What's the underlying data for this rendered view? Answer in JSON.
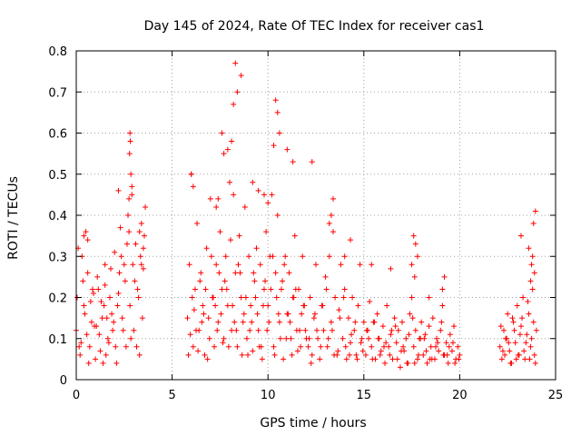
{
  "chart_data": {
    "type": "scatter",
    "title": "Day 145 of 2024, Rate Of TEC Index for receiver cas1",
    "xlabel": "GPS time / hours",
    "ylabel": "ROTI / TECUs",
    "xlim": [
      0,
      25
    ],
    "ylim": [
      0,
      0.8
    ],
    "xticks": [
      0,
      5,
      10,
      15,
      20,
      25
    ],
    "yticks": [
      0,
      0.1,
      0.2,
      0.3,
      0.4,
      0.5,
      0.6,
      0.7,
      0.8
    ],
    "xtick_labels": [
      "0",
      "5",
      "10",
      "15",
      "20",
      "25"
    ],
    "ytick_labels": [
      "0",
      "0.1",
      "0.2",
      "0.3",
      "0.4",
      "0.5",
      "0.6",
      "0.7",
      "0.8"
    ],
    "grid": true,
    "marker": "+",
    "series_color": "#ff0000",
    "series": [
      {
        "name": "ROTI",
        "x": [
          0.0,
          0.1,
          0.2,
          0.3,
          0.4,
          0.5,
          0.6,
          0.7,
          0.8,
          0.9,
          1.0,
          1.1,
          1.2,
          1.3,
          1.4,
          1.5,
          1.6,
          1.7,
          1.8,
          1.9,
          2.0,
          2.1,
          2.2,
          2.3,
          2.4,
          2.5,
          2.6,
          2.7,
          2.8,
          2.9,
          3.0,
          3.1,
          3.2,
          3.3,
          3.4,
          3.5,
          3.6,
          0.05,
          0.25,
          0.45,
          0.65,
          0.85,
          1.05,
          1.25,
          1.45,
          1.65,
          1.85,
          2.05,
          2.25,
          2.45,
          2.65,
          2.85,
          3.05,
          3.25,
          3.45,
          0.15,
          0.35,
          0.55,
          0.75,
          0.95,
          1.15,
          1.35,
          1.55,
          1.75,
          1.95,
          2.15,
          2.35,
          2.55,
          2.75,
          2.95,
          3.15,
          3.35,
          3.55,
          2.8,
          2.82,
          2.78,
          2.85,
          2.9,
          2.75,
          3.3,
          3.4,
          3.5,
          2.2,
          1.5,
          0.4,
          0.6,
          5.8,
          5.9,
          6.0,
          6.1,
          6.2,
          6.3,
          6.4,
          6.5,
          6.6,
          6.7,
          6.8,
          6.9,
          7.0,
          7.1,
          7.2,
          7.3,
          7.4,
          7.5,
          7.6,
          7.7,
          7.8,
          7.9,
          8.0,
          8.1,
          8.2,
          8.3,
          8.4,
          8.5,
          8.6,
          8.7,
          8.8,
          8.9,
          9.0,
          9.1,
          9.2,
          9.3,
          9.4,
          9.5,
          9.6,
          9.7,
          9.8,
          9.9,
          10.0,
          10.1,
          10.2,
          10.3,
          10.4,
          10.5,
          10.6,
          10.7,
          10.8,
          10.9,
          11.0,
          11.1,
          11.2,
          11.3,
          11.4,
          11.5,
          11.6,
          11.7,
          11.8,
          11.9,
          12.0,
          5.85,
          6.05,
          6.25,
          6.45,
          6.65,
          6.85,
          7.05,
          7.25,
          7.45,
          7.65,
          7.85,
          8.05,
          8.25,
          8.45,
          8.65,
          8.85,
          9.05,
          9.25,
          9.45,
          9.65,
          9.85,
          10.05,
          10.25,
          10.45,
          10.65,
          10.85,
          11.05,
          11.25,
          11.45,
          11.65,
          11.85,
          5.95,
          6.15,
          6.35,
          6.55,
          6.75,
          6.95,
          7.15,
          7.35,
          7.55,
          7.75,
          7.95,
          8.15,
          8.35,
          8.55,
          8.75,
          8.95,
          9.15,
          9.35,
          9.55,
          9.75,
          9.95,
          10.15,
          10.35,
          10.55,
          10.75,
          10.95,
          11.15,
          11.35,
          11.55,
          11.75,
          11.95,
          8.3,
          8.4,
          8.6,
          8.2,
          8.1,
          7.9,
          7.7,
          7.6,
          10.5,
          10.4,
          10.6,
          10.3,
          11.0,
          11.3,
          6.0,
          6.1,
          9.2,
          9.5,
          9.8,
          10.0,
          7.3,
          7.4,
          12.3,
          12.1,
          12.2,
          12.3,
          12.4,
          12.5,
          12.6,
          12.7,
          12.8,
          12.9,
          13.0,
          13.1,
          13.2,
          13.3,
          13.4,
          13.5,
          13.6,
          13.7,
          13.8,
          13.9,
          14.0,
          14.1,
          14.2,
          14.3,
          14.4,
          14.5,
          14.6,
          14.7,
          14.8,
          14.9,
          15.0,
          15.1,
          15.2,
          15.3,
          15.4,
          15.5,
          15.6,
          15.7,
          15.8,
          15.9,
          16.0,
          16.1,
          16.2,
          16.3,
          16.4,
          16.5,
          16.6,
          16.7,
          16.8,
          16.9,
          17.0,
          17.1,
          17.2,
          17.3,
          17.4,
          17.5,
          17.6,
          17.7,
          17.8,
          17.9,
          18.0,
          18.1,
          18.2,
          18.3,
          18.4,
          18.5,
          18.6,
          18.7,
          18.8,
          18.9,
          19.0,
          19.1,
          19.2,
          19.3,
          19.4,
          19.5,
          19.6,
          19.7,
          19.8,
          19.9,
          20.0,
          12.15,
          12.45,
          12.75,
          13.05,
          13.35,
          13.65,
          13.95,
          14.25,
          14.55,
          14.85,
          15.15,
          15.45,
          15.75,
          16.05,
          16.35,
          16.65,
          16.95,
          17.25,
          17.55,
          17.85,
          18.15,
          18.45,
          18.75,
          19.05,
          19.35,
          19.65,
          19.95,
          12.25,
          12.55,
          12.85,
          13.15,
          13.45,
          13.75,
          14.05,
          14.35,
          14.65,
          14.95,
          15.25,
          15.55,
          15.85,
          16.15,
          16.45,
          16.75,
          17.05,
          17.35,
          17.65,
          17.95,
          18.25,
          18.55,
          18.85,
          19.15,
          19.45,
          19.75,
          17.6,
          17.7,
          17.8,
          17.5,
          17.65,
          13.3,
          13.4,
          13.2,
          14.0,
          14.3,
          15.4,
          16.4,
          19.2,
          19.1,
          18.4,
          22.1,
          22.2,
          22.3,
          22.4,
          22.5,
          22.6,
          22.7,
          22.8,
          22.9,
          23.0,
          23.1,
          23.2,
          23.3,
          23.4,
          23.5,
          23.6,
          23.7,
          23.8,
          23.9,
          24.0,
          22.15,
          22.35,
          22.55,
          22.75,
          22.95,
          23.15,
          23.35,
          23.55,
          23.75,
          23.95,
          22.25,
          22.45,
          22.65,
          22.85,
          23.05,
          23.25,
          23.45,
          23.65,
          23.85,
          23.7,
          23.8,
          23.9,
          23.85,
          23.75,
          23.2,
          23.95,
          23.6
        ],
        "y": [
          0.12,
          0.32,
          0.06,
          0.3,
          0.18,
          0.36,
          0.26,
          0.08,
          0.14,
          0.21,
          0.05,
          0.25,
          0.11,
          0.19,
          0.04,
          0.23,
          0.15,
          0.09,
          0.27,
          0.12,
          0.31,
          0.04,
          0.21,
          0.37,
          0.15,
          0.28,
          0.08,
          0.4,
          0.18,
          0.45,
          0.12,
          0.33,
          0.22,
          0.06,
          0.38,
          0.27,
          0.42,
          0.2,
          0.09,
          0.16,
          0.04,
          0.22,
          0.13,
          0.07,
          0.18,
          0.1,
          0.16,
          0.08,
          0.26,
          0.12,
          0.33,
          0.1,
          0.24,
          0.2,
          0.15,
          0.08,
          0.24,
          0.11,
          0.19,
          0.13,
          0.22,
          0.15,
          0.06,
          0.2,
          0.14,
          0.18,
          0.3,
          0.24,
          0.36,
          0.28,
          0.08,
          0.3,
          0.35,
          0.6,
          0.58,
          0.55,
          0.5,
          0.47,
          0.44,
          0.36,
          0.28,
          0.32,
          0.46,
          0.28,
          0.35,
          0.34,
          0.15,
          0.28,
          0.5,
          0.08,
          0.22,
          0.38,
          0.12,
          0.26,
          0.18,
          0.06,
          0.32,
          0.15,
          0.44,
          0.2,
          0.08,
          0.28,
          0.14,
          0.36,
          0.22,
          0.1,
          0.3,
          0.18,
          0.48,
          0.12,
          0.45,
          0.26,
          0.08,
          0.35,
          0.2,
          0.14,
          0.42,
          0.1,
          0.3,
          0.18,
          0.07,
          0.24,
          0.32,
          0.12,
          0.28,
          0.05,
          0.22,
          0.36,
          0.18,
          0.3,
          0.45,
          0.08,
          0.26,
          0.4,
          0.14,
          0.22,
          0.05,
          0.3,
          0.16,
          0.26,
          0.1,
          0.2,
          0.35,
          0.12,
          0.22,
          0.08,
          0.3,
          0.18,
          0.1,
          0.06,
          0.2,
          0.12,
          0.24,
          0.16,
          0.05,
          0.3,
          0.18,
          0.26,
          0.09,
          0.22,
          0.34,
          0.14,
          0.28,
          0.06,
          0.2,
          0.12,
          0.26,
          0.16,
          0.08,
          0.24,
          0.14,
          0.3,
          0.2,
          0.1,
          0.28,
          0.16,
          0.06,
          0.22,
          0.12,
          0.18,
          0.11,
          0.17,
          0.07,
          0.14,
          0.22,
          0.1,
          0.2,
          0.12,
          0.16,
          0.24,
          0.08,
          0.18,
          0.12,
          0.26,
          0.16,
          0.06,
          0.14,
          0.2,
          0.08,
          0.18,
          0.12,
          0.22,
          0.06,
          0.16,
          0.24,
          0.1,
          0.14,
          0.2,
          0.07,
          0.16,
          0.12,
          0.77,
          0.7,
          0.74,
          0.67,
          0.58,
          0.56,
          0.55,
          0.6,
          0.65,
          0.68,
          0.6,
          0.57,
          0.56,
          0.53,
          0.5,
          0.47,
          0.48,
          0.46,
          0.45,
          0.43,
          0.42,
          0.44,
          0.53,
          0.08,
          0.2,
          0.06,
          0.15,
          0.28,
          0.1,
          0.05,
          0.18,
          0.12,
          0.25,
          0.08,
          0.3,
          0.14,
          0.44,
          0.2,
          0.06,
          0.17,
          0.28,
          0.1,
          0.22,
          0.05,
          0.15,
          0.09,
          0.2,
          0.12,
          0.06,
          0.18,
          0.28,
          0.1,
          0.14,
          0.06,
          0.12,
          0.19,
          0.08,
          0.14,
          0.05,
          0.16,
          0.1,
          0.07,
          0.13,
          0.04,
          0.18,
          0.08,
          0.11,
          0.05,
          0.15,
          0.09,
          0.12,
          0.03,
          0.14,
          0.07,
          0.1,
          0.04,
          0.16,
          0.2,
          0.08,
          0.12,
          0.05,
          0.1,
          0.14,
          0.06,
          0.11,
          0.04,
          0.13,
          0.08,
          0.15,
          0.05,
          0.1,
          0.07,
          0.12,
          0.18,
          0.06,
          0.09,
          0.04,
          0.11,
          0.07,
          0.13,
          0.05,
          0.08,
          0.06,
          0.1,
          0.16,
          0.08,
          0.22,
          0.12,
          0.07,
          0.2,
          0.06,
          0.14,
          0.09,
          0.12,
          0.05,
          0.1,
          0.08,
          0.06,
          0.13,
          0.07,
          0.04,
          0.15,
          0.06,
          0.1,
          0.05,
          0.08,
          0.14,
          0.06,
          0.09,
          0.05,
          0.04,
          0.12,
          0.18,
          0.1,
          0.06,
          0.15,
          0.08,
          0.11,
          0.05,
          0.07,
          0.1,
          0.14,
          0.06,
          0.09,
          0.12,
          0.05,
          0.08,
          0.11,
          0.04,
          0.1,
          0.07,
          0.05,
          0.09,
          0.06,
          0.08,
          0.04,
          0.35,
          0.33,
          0.3,
          0.28,
          0.25,
          0.4,
          0.36,
          0.38,
          0.3,
          0.34,
          0.28,
          0.27,
          0.25,
          0.22,
          0.2,
          0.08,
          0.05,
          0.12,
          0.1,
          0.16,
          0.07,
          0.04,
          0.14,
          0.09,
          0.18,
          0.06,
          0.13,
          0.2,
          0.05,
          0.11,
          0.16,
          0.08,
          0.22,
          0.06,
          0.12,
          0.13,
          0.06,
          0.09,
          0.15,
          0.05,
          0.11,
          0.07,
          0.19,
          0.1,
          0.04,
          0.07,
          0.1,
          0.04,
          0.12,
          0.06,
          0.15,
          0.09,
          0.05,
          0.14,
          0.24,
          0.3,
          0.26,
          0.38,
          0.28,
          0.35,
          0.41,
          0.32
        ]
      }
    ]
  }
}
